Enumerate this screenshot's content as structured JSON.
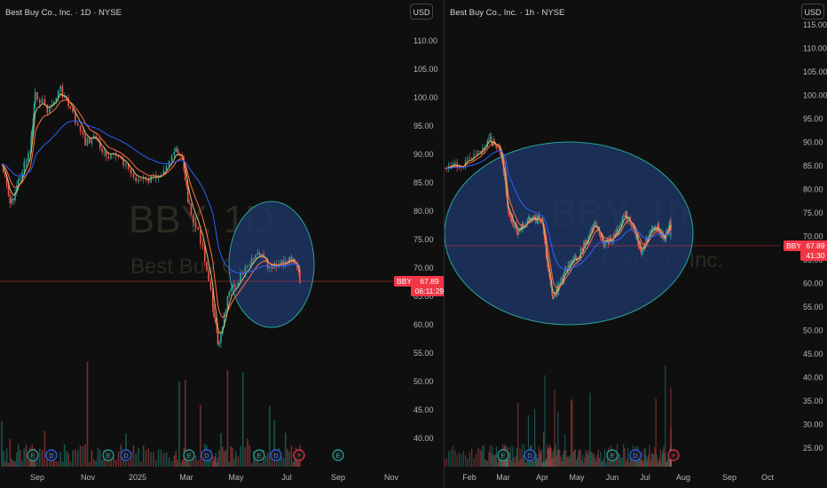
{
  "left": {
    "header": "Best Buy Co., Inc. · 1D · NYSE",
    "currency": "USD",
    "watermark_symbol": "BBY, 1D",
    "watermark_name": "Best Buy Co., Inc.",
    "price_axis": [
      "110.00",
      "105.00",
      "100.00",
      "95.00",
      "90.00",
      "85.00",
      "80.00",
      "75.00",
      "70.00",
      "65.00",
      "60.00",
      "55.00",
      "50.00",
      "45.00",
      "40.00"
    ],
    "time_axis": [
      "Sep",
      "Nov",
      "2025",
      "Mar",
      "May",
      "Jul",
      "Sep",
      "Nov"
    ],
    "symbol_tag": "BBY",
    "last_price": "67.89",
    "countdown": "06:11:29",
    "event_markers": [
      "E",
      "D",
      "E",
      "D",
      "E",
      "D",
      "E",
      "D",
      "E",
      "D"
    ]
  },
  "right": {
    "header": "Best Buy Co., Inc. · 1h · NYSE",
    "currency": "USD",
    "watermark_symbol": "BBY, 1h",
    "watermark_name": "Best Buy Co., Inc.",
    "price_axis": [
      "115.00",
      "110.00",
      "105.00",
      "100.00",
      "95.00",
      "90.00",
      "85.00",
      "80.00",
      "75.00",
      "70.00",
      "65.00",
      "60.00",
      "55.00",
      "50.00",
      "45.00",
      "40.00",
      "35.00",
      "30.00",
      "25.00"
    ],
    "time_axis": [
      "Feb",
      "Mar",
      "Apr",
      "May",
      "Jun",
      "Jul",
      "Aug",
      "Sep",
      "Oct"
    ],
    "symbol_tag": "BBY",
    "last_price": "67.89",
    "countdown": "41:30",
    "event_markers": [
      "E",
      "D",
      "E",
      "D"
    ]
  },
  "colors": {
    "up": "#26a69a",
    "down": "#ef5350",
    "ema_fast": "#e0c26a",
    "ema_mid": "#ff7043",
    "ema_slow": "#2962ff",
    "highlight": "#1d3461",
    "highlight_border": "#26a69a",
    "price_line": "#f23645"
  }
}
